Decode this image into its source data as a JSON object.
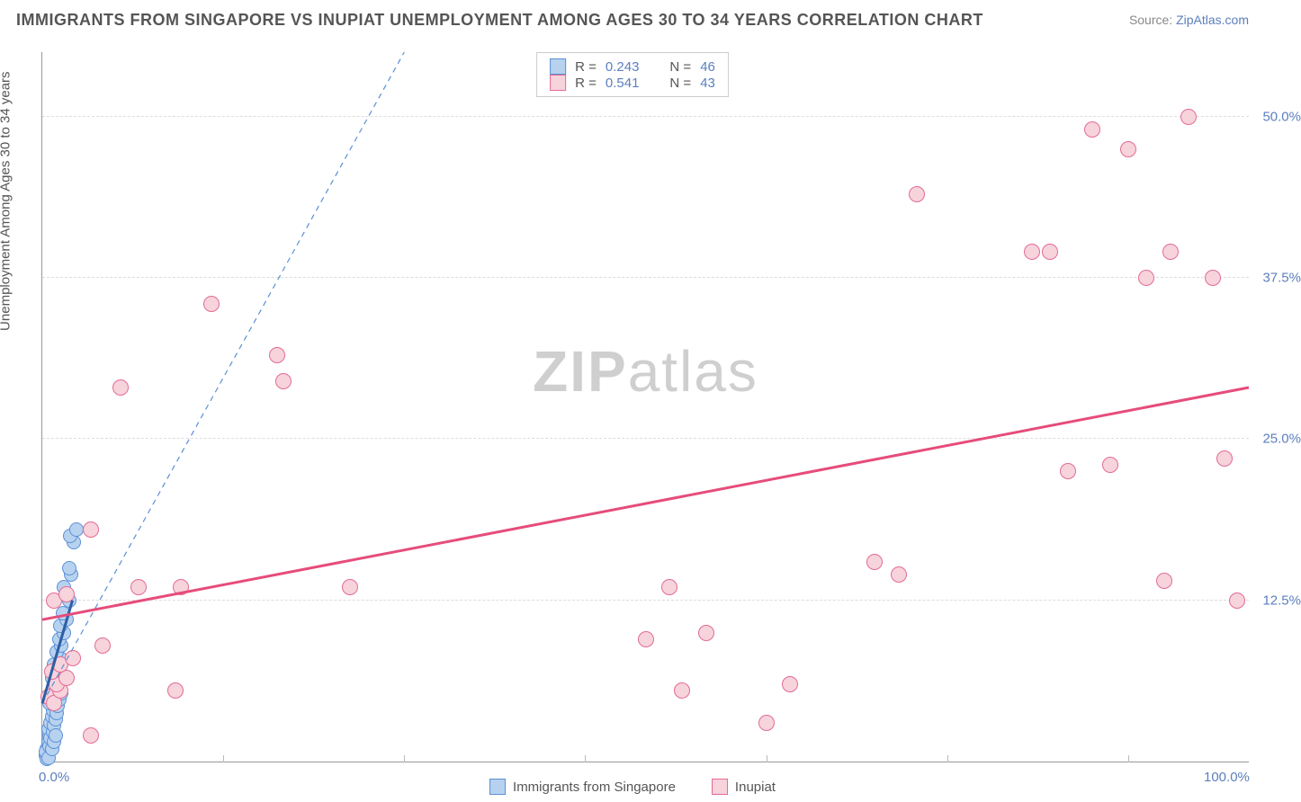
{
  "title": "IMMIGRANTS FROM SINGAPORE VS INUPIAT UNEMPLOYMENT AMONG AGES 30 TO 34 YEARS CORRELATION CHART",
  "source_prefix": "Source: ",
  "source_link": "ZipAtlas.com",
  "ylabel": "Unemployment Among Ages 30 to 34 years",
  "watermark_bold": "ZIP",
  "watermark_light": "atlas",
  "chart": {
    "type": "scatter",
    "xlim": [
      0,
      100
    ],
    "ylim": [
      0,
      55
    ],
    "x_ticks_minor": [
      15,
      30,
      45,
      60,
      75,
      90
    ],
    "x_ticks_labeled": [
      {
        "v": 0,
        "label": "0.0%"
      },
      {
        "v": 100,
        "label": "100.0%"
      }
    ],
    "y_ticks": [
      {
        "v": 12.5,
        "label": "12.5%"
      },
      {
        "v": 25.0,
        "label": "25.0%"
      },
      {
        "v": 37.5,
        "label": "37.5%"
      },
      {
        "v": 50.0,
        "label": "50.0%"
      }
    ],
    "grid_color": "#e3e3e3",
    "background_color": "#ffffff",
    "series": [
      {
        "name": "Immigrants from Singapore",
        "color_fill": "#b7d2ef",
        "color_stroke": "#5b8fd6",
        "marker_radius": 8,
        "r_value": "0.243",
        "n_value": "46",
        "trend": {
          "x1": 0,
          "y1": 4.5,
          "x2": 30,
          "y2": 55,
          "dash": "6,5",
          "width": 1.2,
          "color": "#5b8fd6"
        },
        "solid_seg": {
          "x1": 0,
          "y1": 4.5,
          "x2": 2.5,
          "y2": 12.5,
          "color": "#2e5fa3",
          "width": 3
        },
        "points": [
          [
            0.3,
            0.5
          ],
          [
            0.4,
            1.0
          ],
          [
            0.5,
            1.5
          ],
          [
            0.6,
            2.0
          ],
          [
            0.5,
            2.5
          ],
          [
            0.7,
            3.0
          ],
          [
            0.8,
            3.5
          ],
          [
            0.9,
            4.0
          ],
          [
            0.6,
            4.5
          ],
          [
            1.0,
            5.0
          ],
          [
            1.1,
            5.5
          ],
          [
            1.2,
            6.0
          ],
          [
            0.8,
            6.5
          ],
          [
            1.3,
            7.0
          ],
          [
            1.0,
            7.5
          ],
          [
            1.5,
            8.0
          ],
          [
            1.2,
            8.5
          ],
          [
            1.6,
            9.0
          ],
          [
            1.4,
            9.5
          ],
          [
            1.8,
            10.0
          ],
          [
            1.5,
            10.5
          ],
          [
            2.0,
            11.0
          ],
          [
            1.7,
            11.5
          ],
          [
            2.2,
            12.5
          ],
          [
            2.0,
            13.0
          ],
          [
            1.8,
            13.5
          ],
          [
            2.4,
            14.5
          ],
          [
            2.2,
            15.0
          ],
          [
            2.6,
            17.0
          ],
          [
            2.3,
            17.5
          ],
          [
            2.8,
            18.0
          ],
          [
            0.4,
            0.2
          ],
          [
            0.3,
            0.8
          ],
          [
            0.6,
            1.2
          ],
          [
            0.7,
            1.8
          ],
          [
            0.9,
            2.3
          ],
          [
            1.0,
            2.8
          ],
          [
            1.1,
            3.3
          ],
          [
            1.2,
            3.8
          ],
          [
            1.3,
            4.3
          ],
          [
            1.4,
            4.8
          ],
          [
            1.6,
            5.3
          ],
          [
            0.5,
            0.3
          ],
          [
            0.8,
            1.0
          ],
          [
            1.0,
            1.5
          ],
          [
            1.1,
            2.0
          ]
        ]
      },
      {
        "name": "Inupiat",
        "color_fill": "#f7d3dc",
        "color_stroke": "#e36b95",
        "marker_radius": 9,
        "r_value": "0.541",
        "n_value": "43",
        "trend": {
          "x1": 0,
          "y1": 11.0,
          "x2": 100,
          "y2": 29.0,
          "dash": "none",
          "width": 3,
          "color": "#e64c7a"
        },
        "points": [
          [
            0.5,
            5.0
          ],
          [
            1.0,
            4.5
          ],
          [
            1.5,
            5.5
          ],
          [
            1.2,
            6.0
          ],
          [
            0.8,
            7.0
          ],
          [
            2.0,
            6.5
          ],
          [
            1.5,
            7.5
          ],
          [
            2.5,
            8.0
          ],
          [
            1.0,
            12.5
          ],
          [
            2.0,
            13.0
          ],
          [
            4.0,
            2.0
          ],
          [
            5.0,
            9.0
          ],
          [
            4.0,
            18.0
          ],
          [
            6.5,
            29.0
          ],
          [
            8.0,
            13.5
          ],
          [
            11.0,
            5.5
          ],
          [
            11.5,
            13.5
          ],
          [
            14.0,
            35.5
          ],
          [
            19.5,
            31.5
          ],
          [
            20.0,
            29.5
          ],
          [
            25.5,
            13.5
          ],
          [
            50.0,
            9.5
          ],
          [
            52.0,
            13.5
          ],
          [
            53.0,
            5.5
          ],
          [
            55.0,
            10.0
          ],
          [
            60.0,
            3.0
          ],
          [
            62.0,
            6.0
          ],
          [
            69.0,
            15.5
          ],
          [
            71.0,
            14.5
          ],
          [
            72.5,
            44.0
          ],
          [
            82.0,
            39.5
          ],
          [
            83.5,
            39.5
          ],
          [
            85.0,
            22.5
          ],
          [
            87.0,
            49.0
          ],
          [
            88.5,
            23.0
          ],
          [
            90.0,
            47.5
          ],
          [
            91.5,
            37.5
          ],
          [
            93.0,
            14.0
          ],
          [
            93.5,
            39.5
          ],
          [
            95.0,
            50.0
          ],
          [
            97.0,
            37.5
          ],
          [
            98.0,
            23.5
          ],
          [
            99.0,
            12.5
          ]
        ]
      }
    ],
    "legend_labels": {
      "r_prefix": "R = ",
      "n_prefix": "N = "
    }
  }
}
